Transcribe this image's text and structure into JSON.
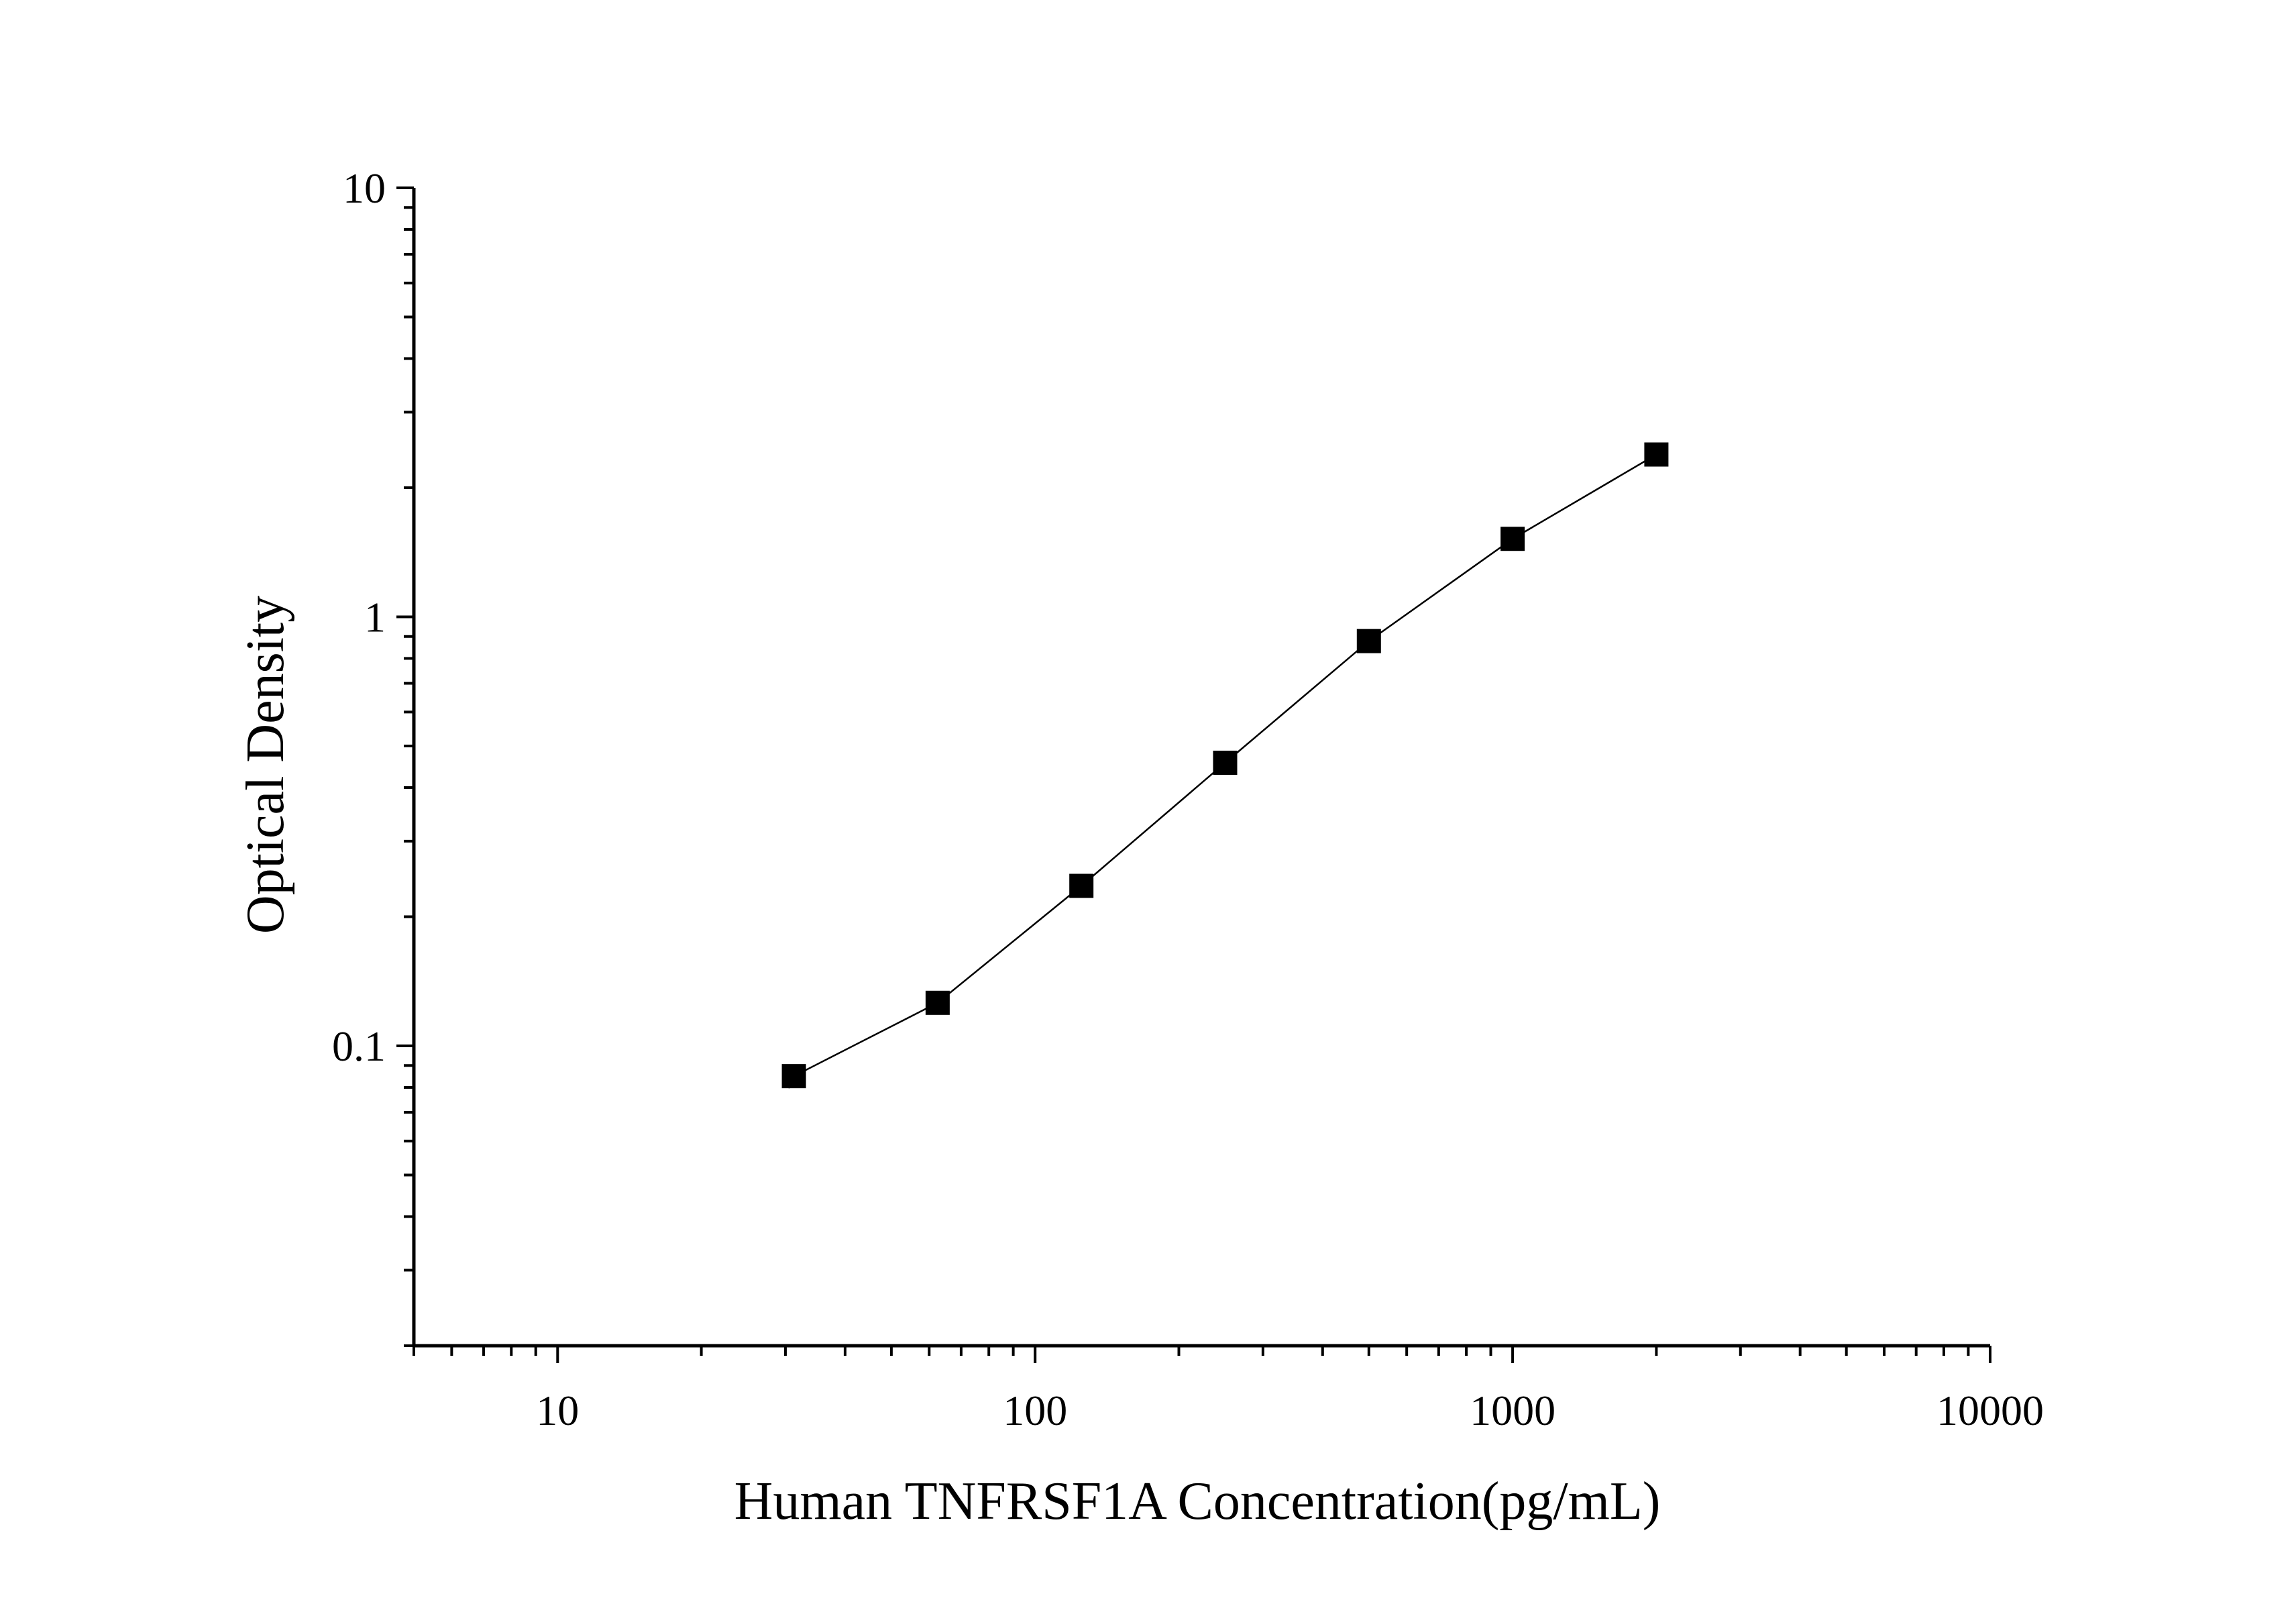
{
  "chart_data": {
    "type": "line",
    "title": "",
    "xlabel": "Human TNFRSF1A Concentration(pg/mL)",
    "ylabel": "Optical Density",
    "x_scale": "log",
    "y_scale": "log",
    "xlim": [
      5,
      10000
    ],
    "ylim": [
      0.02,
      10
    ],
    "x_ticks": [
      "10",
      "100",
      "1000",
      "10000"
    ],
    "y_ticks": [
      "0.1",
      "1",
      "10"
    ],
    "grid": false,
    "legend": "none",
    "series": [
      {
        "marker": "square",
        "color": "#000000",
        "x": [
          31.25,
          62.5,
          125,
          250,
          500,
          1000,
          2000
        ],
        "y": [
          0.085,
          0.126,
          0.236,
          0.457,
          0.878,
          1.52,
          2.39
        ]
      }
    ]
  }
}
